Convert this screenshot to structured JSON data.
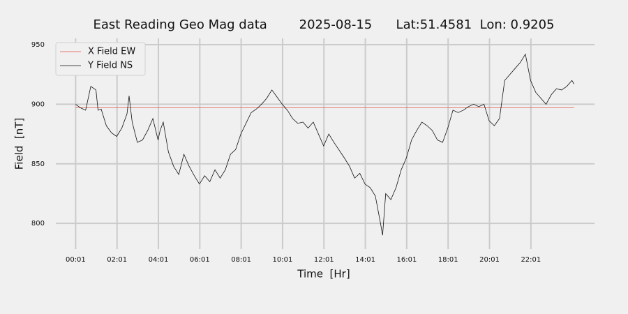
{
  "chart_data": {
    "type": "line",
    "title": "East Reading Geo Mag data        2025-08-15      Lat:51.4581  Lon: 0.9205",
    "xlabel": "Time  [Hr]",
    "ylabel": "Field  [nT]",
    "xlim": [
      -0.94,
      25.09
    ],
    "ylim": [
      778.4,
      955.3
    ],
    "xticks": [
      {
        "value": 0.0167,
        "label": "00:01"
      },
      {
        "value": 2.0167,
        "label": "02:01"
      },
      {
        "value": 4.0167,
        "label": "04:01"
      },
      {
        "value": 6.0167,
        "label": "06:01"
      },
      {
        "value": 8.0167,
        "label": "08:01"
      },
      {
        "value": 10.0167,
        "label": "10:01"
      },
      {
        "value": 12.0167,
        "label": "12:01"
      },
      {
        "value": 14.0167,
        "label": "14:01"
      },
      {
        "value": 16.0167,
        "label": "16:01"
      },
      {
        "value": 18.0167,
        "label": "18:01"
      },
      {
        "value": 20.0167,
        "label": "20:01"
      },
      {
        "value": 22.0167,
        "label": "22:01"
      }
    ],
    "yticks": [
      800,
      850,
      900,
      950
    ],
    "grid": true,
    "legend": "upper left",
    "series": [
      {
        "name": "X Field EW",
        "color": "#e0524a",
        "x": [
          0.0167,
          24.1
        ],
        "values": [
          897,
          897
        ]
      },
      {
        "name": "Y Field NS",
        "color": "#111111",
        "x": [
          0.0167,
          0.25,
          0.5,
          0.75,
          1.0,
          1.1,
          1.25,
          1.5,
          1.75,
          2.0,
          2.25,
          2.5,
          2.6,
          2.75,
          3.0,
          3.25,
          3.5,
          3.75,
          4.0,
          4.1,
          4.25,
          4.5,
          4.75,
          5.0,
          5.25,
          5.5,
          5.75,
          6.0,
          6.25,
          6.5,
          6.75,
          7.0,
          7.25,
          7.5,
          7.75,
          8.0,
          8.25,
          8.5,
          8.75,
          9.0,
          9.25,
          9.5,
          9.75,
          10.0,
          10.25,
          10.5,
          10.75,
          11.0,
          11.25,
          11.5,
          12.0,
          12.25,
          12.5,
          13.0,
          13.25,
          13.5,
          13.75,
          14.0,
          14.25,
          14.5,
          14.75,
          14.85,
          15.0,
          15.25,
          15.5,
          15.75,
          16.0,
          16.25,
          16.5,
          16.75,
          17.0,
          17.25,
          17.5,
          17.75,
          18.0,
          18.25,
          18.5,
          18.75,
          19.0,
          19.25,
          19.5,
          19.75,
          20.0,
          20.25,
          20.5,
          20.75,
          21.0,
          21.25,
          21.5,
          21.75,
          22.0,
          22.25,
          22.5,
          22.75,
          23.0,
          23.25,
          23.5,
          23.75,
          24.0,
          24.1
        ],
        "values": [
          900,
          897,
          895,
          915,
          912,
          895,
          896,
          882,
          876,
          873,
          880,
          892,
          907,
          885,
          868,
          870,
          878,
          888,
          870,
          878,
          885,
          860,
          848,
          841,
          858,
          848,
          840,
          833,
          840,
          835,
          845,
          838,
          845,
          858,
          862,
          875,
          884,
          893,
          896,
          900,
          905,
          912,
          906,
          900,
          895,
          888,
          884,
          885,
          880,
          885,
          865,
          875,
          868,
          855,
          848,
          838,
          842,
          833,
          830,
          823,
          800,
          790,
          825,
          820,
          830,
          845,
          855,
          870,
          878,
          885,
          882,
          878,
          870,
          868,
          880,
          895,
          893,
          895,
          898,
          900,
          898,
          900,
          886,
          882,
          888,
          920,
          925,
          930,
          935,
          942,
          920,
          910,
          905,
          900,
          908,
          913,
          912,
          915,
          920,
          917
        ]
      }
    ]
  }
}
